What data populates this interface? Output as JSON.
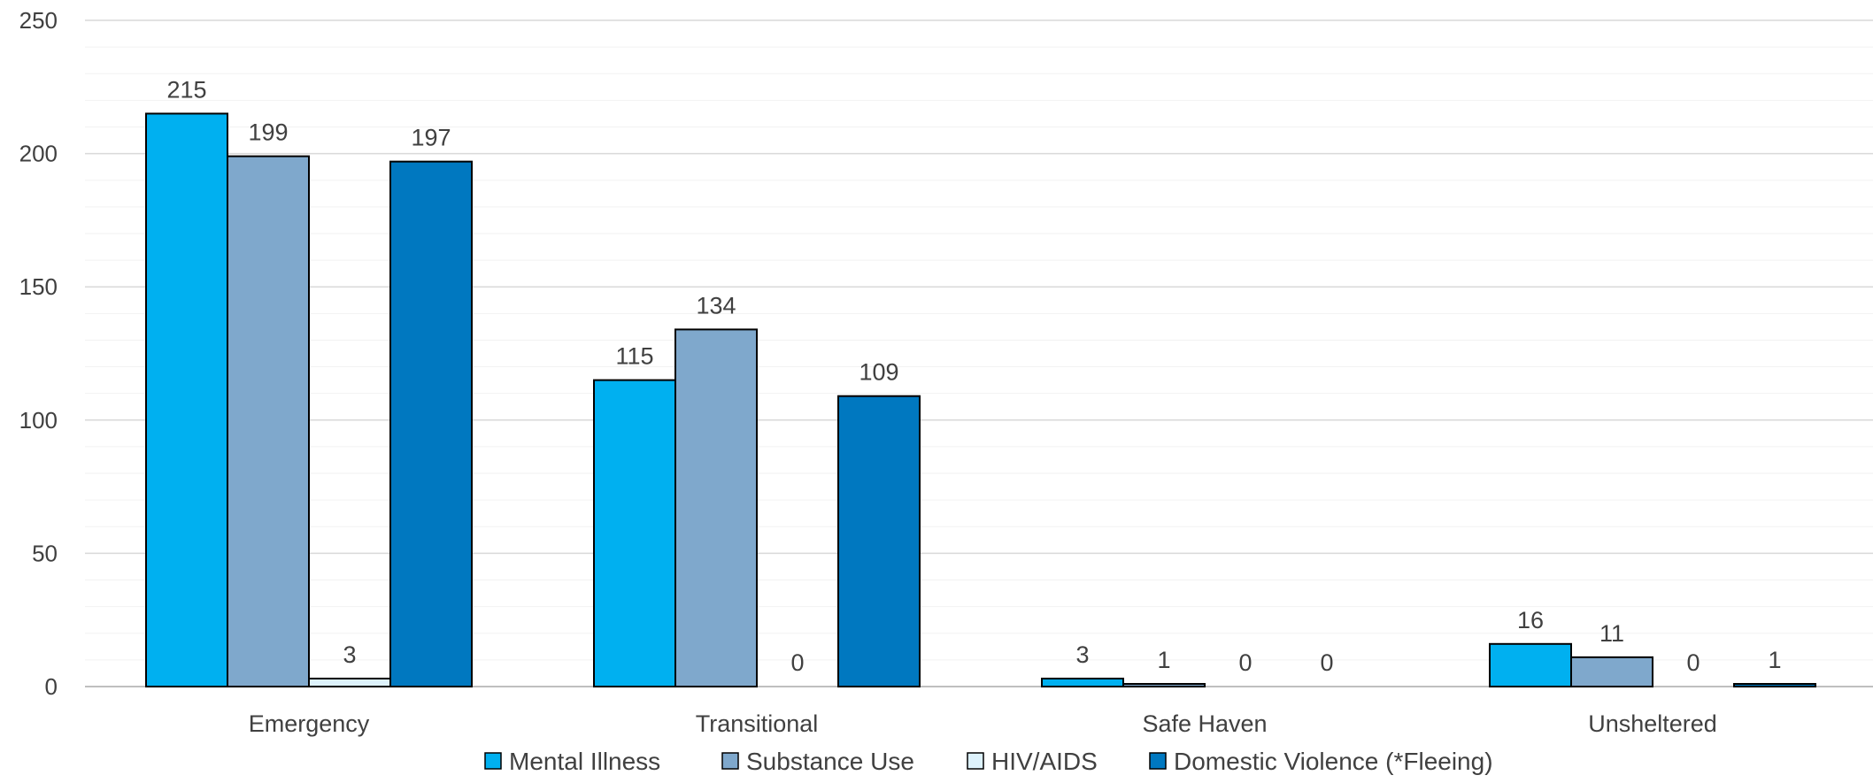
{
  "chart_data": {
    "type": "bar",
    "categories": [
      "Emergency",
      "Transitional",
      "Safe Haven",
      "Unsheltered"
    ],
    "series": [
      {
        "name": "Mental Illness",
        "values": [
          215,
          115,
          3,
          16
        ],
        "color": "#00B0F0"
      },
      {
        "name": "Substance Use",
        "values": [
          199,
          134,
          1,
          11
        ],
        "color": "#7FA8CC"
      },
      {
        "name": "HIV/AIDS",
        "values": [
          3,
          0,
          0,
          0
        ],
        "color": "#DDF2FC"
      },
      {
        "name": "Domestic Violence (*Fleeing)",
        "values": [
          197,
          109,
          0,
          1
        ],
        "color": "#0078C0"
      }
    ],
    "title": "",
    "xlabel": "",
    "ylabel": "",
    "ylim": [
      0,
      250
    ],
    "yticks": [
      0,
      50,
      100,
      150,
      200,
      250
    ],
    "y_minor_step": 10,
    "grid": true,
    "legend_position": "bottom",
    "data_labels": true
  }
}
